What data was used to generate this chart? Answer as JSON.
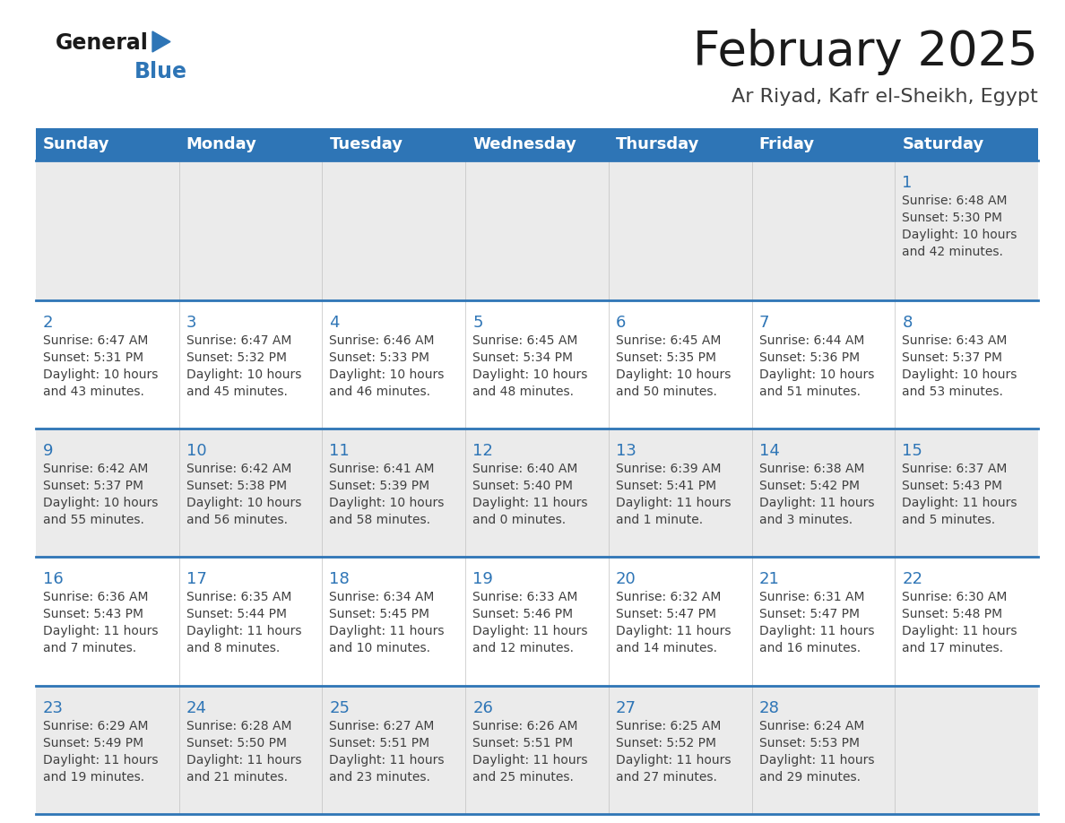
{
  "title": "February 2025",
  "subtitle": "Ar Riyad, Kafr el-Sheikh, Egypt",
  "header_color": "#2e75b6",
  "header_text_color": "#ffffff",
  "day_names": [
    "Sunday",
    "Monday",
    "Tuesday",
    "Wednesday",
    "Thursday",
    "Friday",
    "Saturday"
  ],
  "cell_bg_week1": "#ebebeb",
  "cell_bg_even": "#ebebeb",
  "cell_bg_odd": "#ffffff",
  "separator_color": "#2e75b6",
  "day_num_color": "#2e75b6",
  "info_color": "#404040",
  "title_color": "#1a1a1a",
  "subtitle_color": "#404040",
  "logo_general_color": "#1a1a1a",
  "logo_blue_color": "#2e75b6",
  "weeks": [
    {
      "days": [
        null,
        null,
        null,
        null,
        null,
        null,
        1
      ],
      "data": [
        null,
        null,
        null,
        null,
        null,
        null,
        {
          "sunrise": "6:48 AM",
          "sunset": "5:30 PM",
          "daylight_line1": "10 hours",
          "daylight_line2": "and 42 minutes."
        }
      ]
    },
    {
      "days": [
        2,
        3,
        4,
        5,
        6,
        7,
        8
      ],
      "data": [
        {
          "sunrise": "6:47 AM",
          "sunset": "5:31 PM",
          "daylight_line1": "10 hours",
          "daylight_line2": "and 43 minutes."
        },
        {
          "sunrise": "6:47 AM",
          "sunset": "5:32 PM",
          "daylight_line1": "10 hours",
          "daylight_line2": "and 45 minutes."
        },
        {
          "sunrise": "6:46 AM",
          "sunset": "5:33 PM",
          "daylight_line1": "10 hours",
          "daylight_line2": "and 46 minutes."
        },
        {
          "sunrise": "6:45 AM",
          "sunset": "5:34 PM",
          "daylight_line1": "10 hours",
          "daylight_line2": "and 48 minutes."
        },
        {
          "sunrise": "6:45 AM",
          "sunset": "5:35 PM",
          "daylight_line1": "10 hours",
          "daylight_line2": "and 50 minutes."
        },
        {
          "sunrise": "6:44 AM",
          "sunset": "5:36 PM",
          "daylight_line1": "10 hours",
          "daylight_line2": "and 51 minutes."
        },
        {
          "sunrise": "6:43 AM",
          "sunset": "5:37 PM",
          "daylight_line1": "10 hours",
          "daylight_line2": "and 53 minutes."
        }
      ]
    },
    {
      "days": [
        9,
        10,
        11,
        12,
        13,
        14,
        15
      ],
      "data": [
        {
          "sunrise": "6:42 AM",
          "sunset": "5:37 PM",
          "daylight_line1": "10 hours",
          "daylight_line2": "and 55 minutes."
        },
        {
          "sunrise": "6:42 AM",
          "sunset": "5:38 PM",
          "daylight_line1": "10 hours",
          "daylight_line2": "and 56 minutes."
        },
        {
          "sunrise": "6:41 AM",
          "sunset": "5:39 PM",
          "daylight_line1": "10 hours",
          "daylight_line2": "and 58 minutes."
        },
        {
          "sunrise": "6:40 AM",
          "sunset": "5:40 PM",
          "daylight_line1": "11 hours",
          "daylight_line2": "and 0 minutes."
        },
        {
          "sunrise": "6:39 AM",
          "sunset": "5:41 PM",
          "daylight_line1": "11 hours",
          "daylight_line2": "and 1 minute."
        },
        {
          "sunrise": "6:38 AM",
          "sunset": "5:42 PM",
          "daylight_line1": "11 hours",
          "daylight_line2": "and 3 minutes."
        },
        {
          "sunrise": "6:37 AM",
          "sunset": "5:43 PM",
          "daylight_line1": "11 hours",
          "daylight_line2": "and 5 minutes."
        }
      ]
    },
    {
      "days": [
        16,
        17,
        18,
        19,
        20,
        21,
        22
      ],
      "data": [
        {
          "sunrise": "6:36 AM",
          "sunset": "5:43 PM",
          "daylight_line1": "11 hours",
          "daylight_line2": "and 7 minutes."
        },
        {
          "sunrise": "6:35 AM",
          "sunset": "5:44 PM",
          "daylight_line1": "11 hours",
          "daylight_line2": "and 8 minutes."
        },
        {
          "sunrise": "6:34 AM",
          "sunset": "5:45 PM",
          "daylight_line1": "11 hours",
          "daylight_line2": "and 10 minutes."
        },
        {
          "sunrise": "6:33 AM",
          "sunset": "5:46 PM",
          "daylight_line1": "11 hours",
          "daylight_line2": "and 12 minutes."
        },
        {
          "sunrise": "6:32 AM",
          "sunset": "5:47 PM",
          "daylight_line1": "11 hours",
          "daylight_line2": "and 14 minutes."
        },
        {
          "sunrise": "6:31 AM",
          "sunset": "5:47 PM",
          "daylight_line1": "11 hours",
          "daylight_line2": "and 16 minutes."
        },
        {
          "sunrise": "6:30 AM",
          "sunset": "5:48 PM",
          "daylight_line1": "11 hours",
          "daylight_line2": "and 17 minutes."
        }
      ]
    },
    {
      "days": [
        23,
        24,
        25,
        26,
        27,
        28,
        null
      ],
      "data": [
        {
          "sunrise": "6:29 AM",
          "sunset": "5:49 PM",
          "daylight_line1": "11 hours",
          "daylight_line2": "and 19 minutes."
        },
        {
          "sunrise": "6:28 AM",
          "sunset": "5:50 PM",
          "daylight_line1": "11 hours",
          "daylight_line2": "and 21 minutes."
        },
        {
          "sunrise": "6:27 AM",
          "sunset": "5:51 PM",
          "daylight_line1": "11 hours",
          "daylight_line2": "and 23 minutes."
        },
        {
          "sunrise": "6:26 AM",
          "sunset": "5:51 PM",
          "daylight_line1": "11 hours",
          "daylight_line2": "and 25 minutes."
        },
        {
          "sunrise": "6:25 AM",
          "sunset": "5:52 PM",
          "daylight_line1": "11 hours",
          "daylight_line2": "and 27 minutes."
        },
        {
          "sunrise": "6:24 AM",
          "sunset": "5:53 PM",
          "daylight_line1": "11 hours",
          "daylight_line2": "and 29 minutes."
        },
        null
      ]
    }
  ]
}
